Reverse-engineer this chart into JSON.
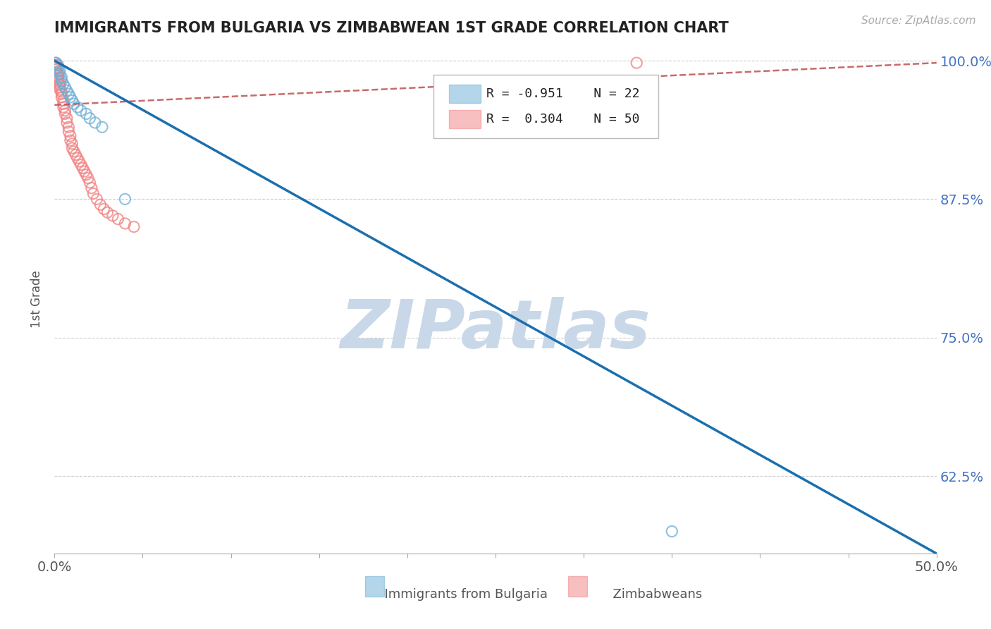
{
  "title": "IMMIGRANTS FROM BULGARIA VS ZIMBABWEAN 1ST GRADE CORRELATION CHART",
  "source_text": "Source: ZipAtlas.com",
  "ylabel": "1st Grade",
  "xlim": [
    0.0,
    0.5
  ],
  "ylim": [
    0.555,
    1.015
  ],
  "xtick_only_ends": [
    0.0,
    0.5
  ],
  "xtick_minor_vals": [
    0.05,
    0.1,
    0.15,
    0.2,
    0.25,
    0.3,
    0.35,
    0.4,
    0.45
  ],
  "xtick_end_labels": [
    "0.0%",
    "50.0%"
  ],
  "ytick_labels": [
    "62.5%",
    "75.0%",
    "87.5%",
    "100.0%"
  ],
  "ytick_vals": [
    0.625,
    0.75,
    0.875,
    1.0
  ],
  "blue_color": "#6baed6",
  "pink_color": "#f08080",
  "blue_line_color": "#1a6faf",
  "pink_line_color": "#c05050",
  "watermark_color": "#c8d8e8",
  "legend_R_blue": "R = -0.951",
  "legend_N_blue": "N = 22",
  "legend_R_pink": "R =  0.304",
  "legend_N_pink": "N = 50",
  "blue_scatter_x": [
    0.001,
    0.002,
    0.002,
    0.003,
    0.003,
    0.004,
    0.004,
    0.005,
    0.006,
    0.007,
    0.008,
    0.009,
    0.01,
    0.011,
    0.013,
    0.015,
    0.018,
    0.02,
    0.023,
    0.027,
    0.04,
    0.35
  ],
  "blue_scatter_y": [
    0.998,
    0.996,
    0.993,
    0.991,
    0.988,
    0.985,
    0.982,
    0.979,
    0.976,
    0.973,
    0.97,
    0.967,
    0.964,
    0.961,
    0.958,
    0.955,
    0.952,
    0.948,
    0.944,
    0.94,
    0.875,
    0.575
  ],
  "blue_scatter_sizes": [
    120,
    120,
    120,
    120,
    120,
    120,
    120,
    120,
    120,
    120,
    120,
    120,
    120,
    120,
    120,
    120,
    120,
    120,
    120,
    120,
    120,
    120
  ],
  "pink_scatter_x": [
    0.0005,
    0.001,
    0.001,
    0.001,
    0.0015,
    0.002,
    0.002,
    0.002,
    0.002,
    0.003,
    0.003,
    0.003,
    0.003,
    0.004,
    0.004,
    0.004,
    0.005,
    0.005,
    0.005,
    0.006,
    0.006,
    0.007,
    0.007,
    0.008,
    0.008,
    0.009,
    0.009,
    0.01,
    0.01,
    0.011,
    0.012,
    0.013,
    0.014,
    0.015,
    0.016,
    0.017,
    0.018,
    0.019,
    0.02,
    0.021,
    0.022,
    0.024,
    0.026,
    0.028,
    0.03,
    0.033,
    0.036,
    0.04,
    0.045,
    0.33
  ],
  "pink_scatter_y": [
    0.998,
    0.996,
    0.994,
    0.992,
    0.99,
    0.988,
    0.986,
    0.984,
    0.982,
    0.98,
    0.978,
    0.976,
    0.974,
    0.972,
    0.97,
    0.967,
    0.964,
    0.961,
    0.958,
    0.955,
    0.952,
    0.948,
    0.944,
    0.94,
    0.936,
    0.932,
    0.928,
    0.925,
    0.921,
    0.918,
    0.915,
    0.912,
    0.909,
    0.906,
    0.903,
    0.9,
    0.897,
    0.894,
    0.89,
    0.885,
    0.88,
    0.875,
    0.87,
    0.866,
    0.863,
    0.86,
    0.857,
    0.853,
    0.85,
    0.998
  ],
  "pink_scatter_sizes": [
    120,
    120,
    120,
    120,
    120,
    120,
    120,
    120,
    120,
    120,
    120,
    120,
    120,
    120,
    120,
    120,
    120,
    120,
    120,
    120,
    120,
    120,
    120,
    120,
    120,
    120,
    120,
    120,
    120,
    120,
    120,
    120,
    120,
    120,
    120,
    120,
    120,
    120,
    120,
    120,
    120,
    120,
    120,
    120,
    120,
    120,
    120,
    120,
    120,
    120
  ],
  "blue_trendline_x": [
    0.0,
    0.5
  ],
  "blue_trendline_y": [
    1.0,
    0.555
  ],
  "pink_trendline_x": [
    0.0,
    0.5
  ],
  "pink_trendline_y": [
    0.96,
    0.998
  ],
  "bottom_label_blue": "Immigrants from Bulgaria",
  "bottom_label_pink": "Zimbabweans",
  "grid_color": "#cccccc"
}
